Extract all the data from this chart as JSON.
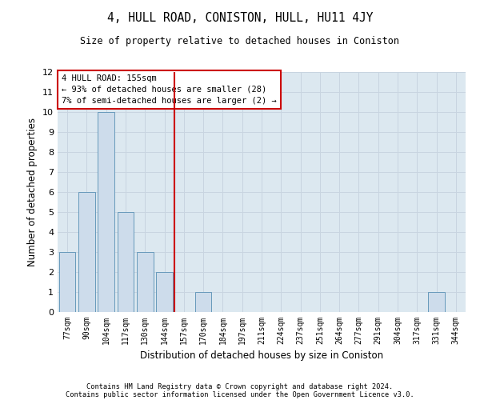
{
  "title": "4, HULL ROAD, CONISTON, HULL, HU11 4JY",
  "subtitle": "Size of property relative to detached houses in Coniston",
  "xlabel": "Distribution of detached houses by size in Coniston",
  "ylabel": "Number of detached properties",
  "categories": [
    "77sqm",
    "90sqm",
    "104sqm",
    "117sqm",
    "130sqm",
    "144sqm",
    "157sqm",
    "170sqm",
    "184sqm",
    "197sqm",
    "211sqm",
    "224sqm",
    "237sqm",
    "251sqm",
    "264sqm",
    "277sqm",
    "291sqm",
    "304sqm",
    "317sqm",
    "331sqm",
    "344sqm"
  ],
  "values": [
    3,
    6,
    10,
    5,
    3,
    2,
    0,
    1,
    0,
    0,
    0,
    0,
    0,
    0,
    0,
    0,
    0,
    0,
    0,
    1,
    0
  ],
  "bar_color": "#cddceb",
  "bar_edgecolor": "#6699bb",
  "vline_x": 5.5,
  "vline_color": "#cc0000",
  "annotation_title": "4 HULL ROAD: 155sqm",
  "annotation_line1": "← 93% of detached houses are smaller (28)",
  "annotation_line2": "7% of semi-detached houses are larger (2) →",
  "ylim": [
    0,
    12
  ],
  "yticks": [
    0,
    1,
    2,
    3,
    4,
    5,
    6,
    7,
    8,
    9,
    10,
    11,
    12
  ],
  "grid_color": "#c8d4e0",
  "background_color": "#dce8f0",
  "footnote1": "Contains HM Land Registry data © Crown copyright and database right 2024.",
  "footnote2": "Contains public sector information licensed under the Open Government Licence v3.0."
}
